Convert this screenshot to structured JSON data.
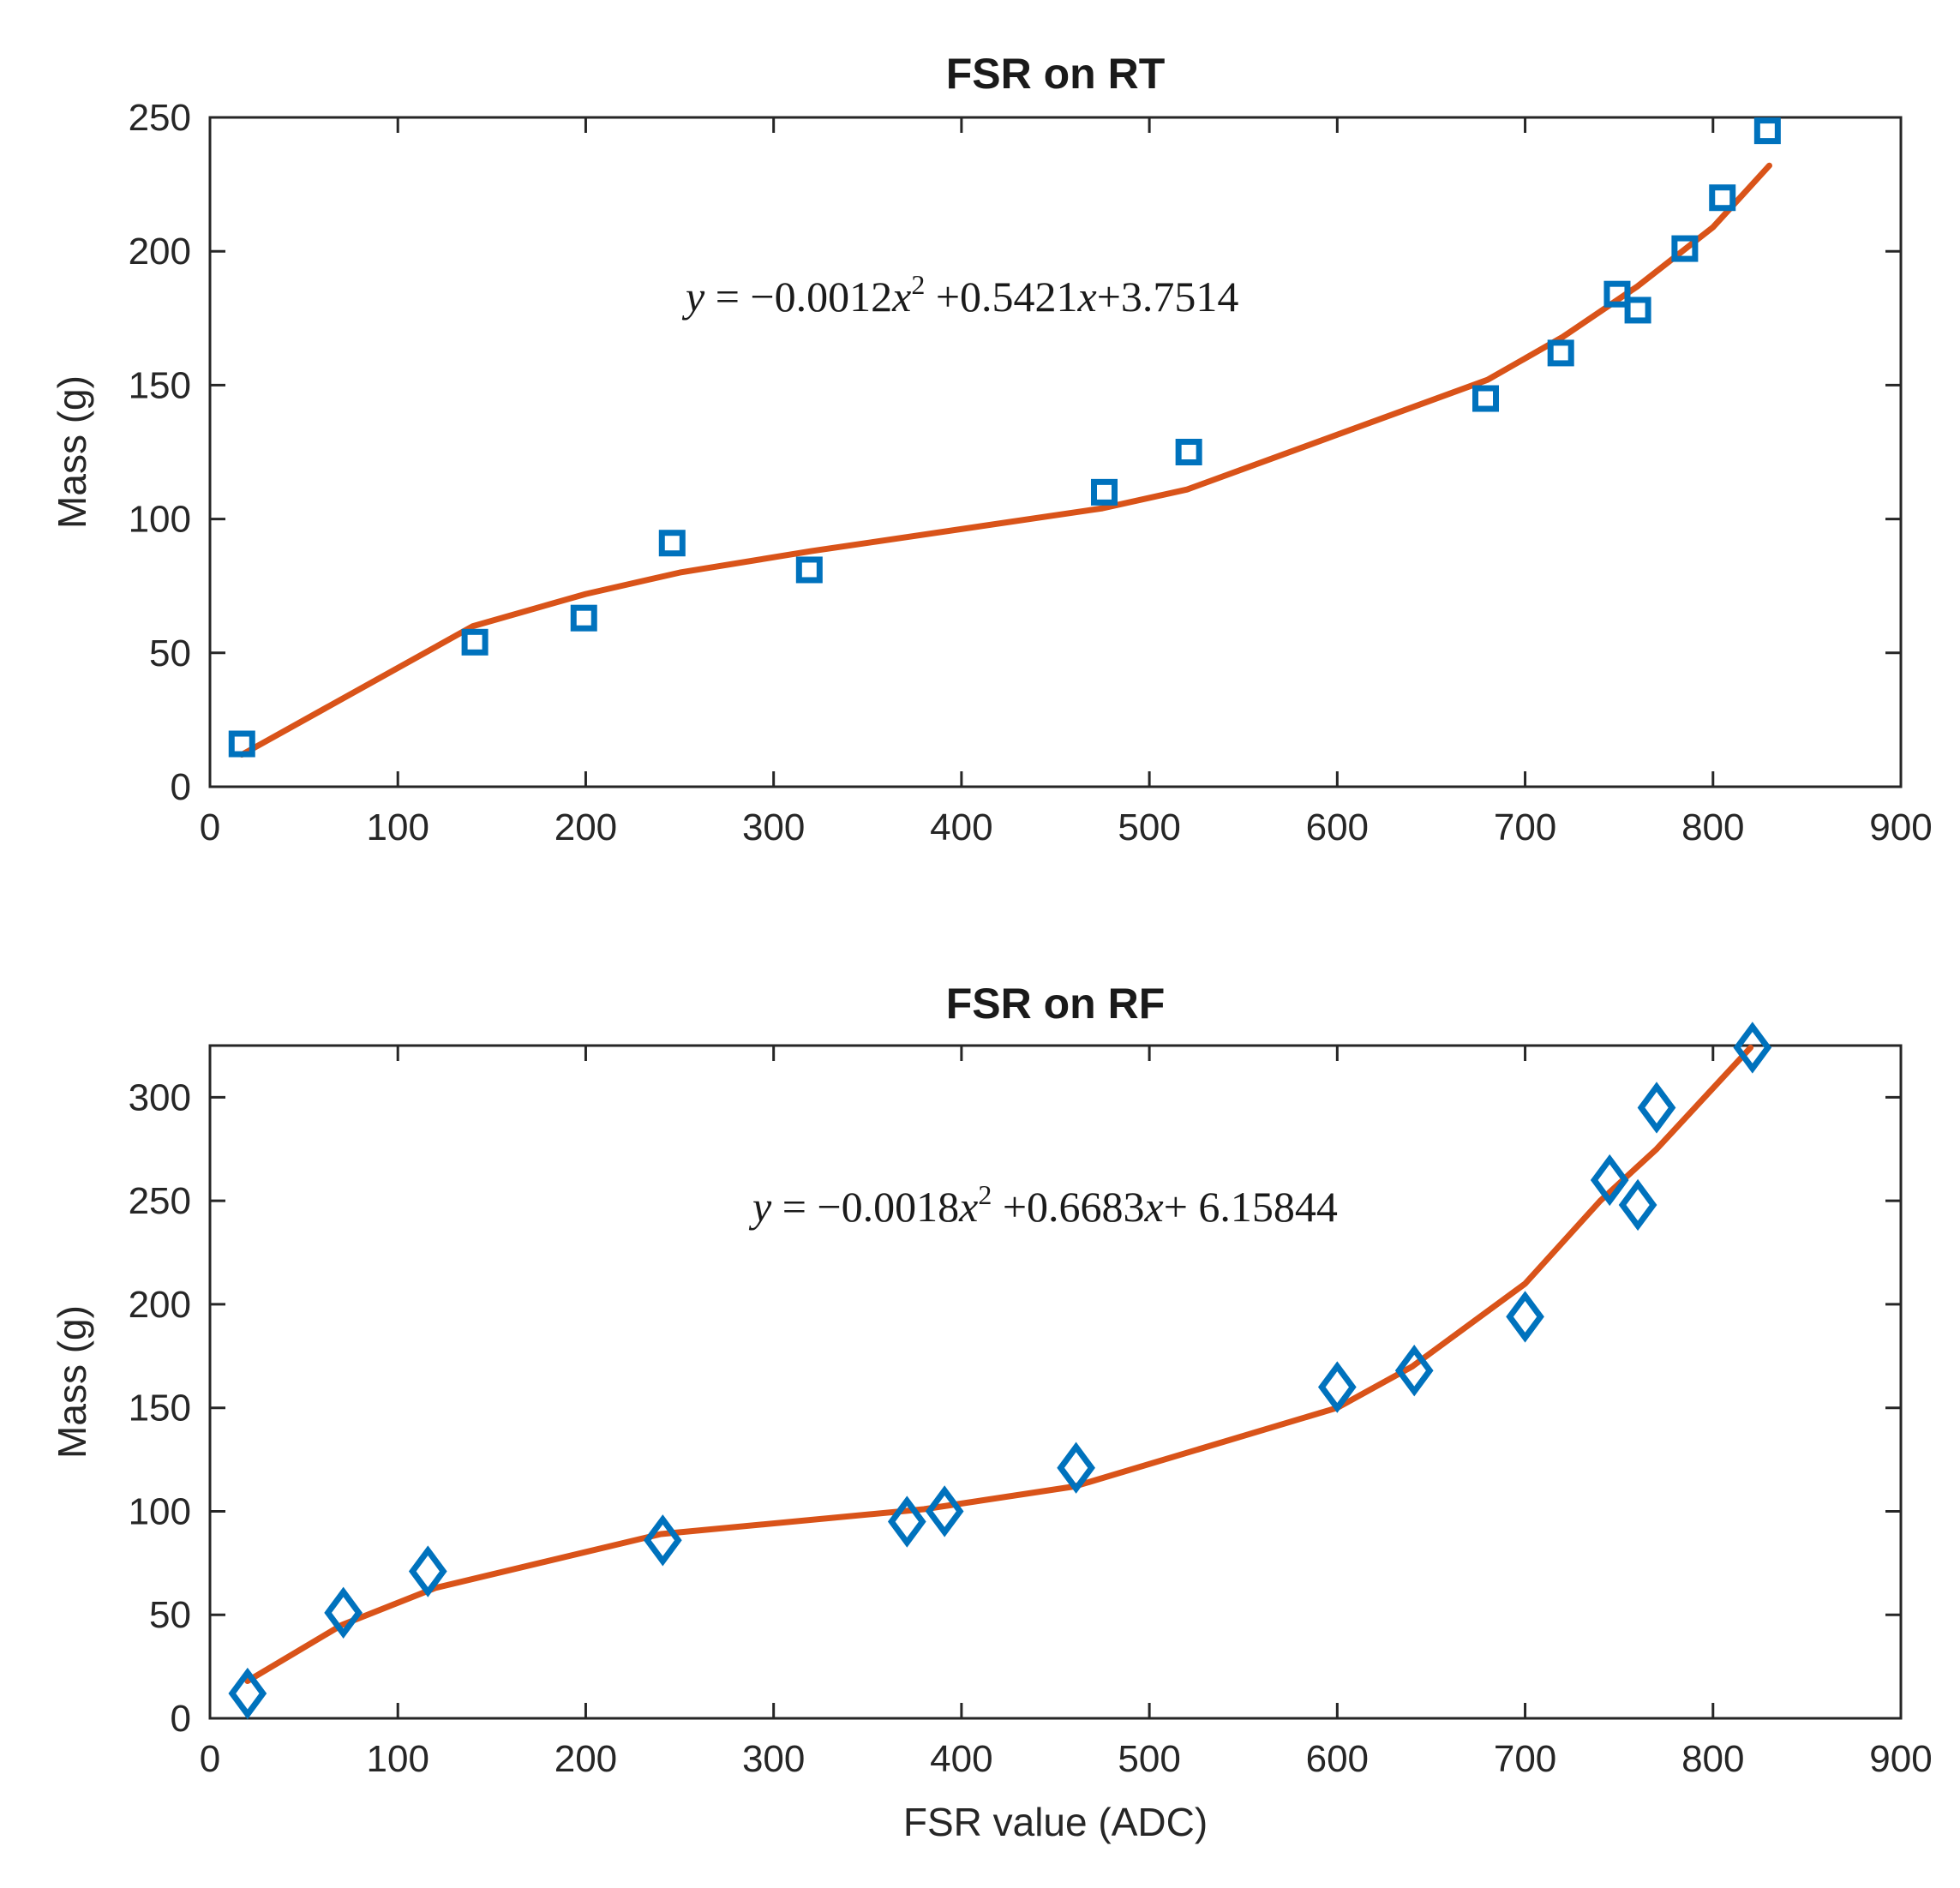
{
  "chart_data": [
    {
      "type": "scatter",
      "title": "FSR on RT",
      "xlabel": "",
      "ylabel": "Mass (g)",
      "xlim": [
        0,
        900
      ],
      "ylim": [
        0,
        250
      ],
      "xticks": [
        0,
        100,
        200,
        300,
        400,
        500,
        600,
        700,
        800,
        900
      ],
      "yticks": [
        0,
        50,
        100,
        150,
        200,
        250
      ],
      "marker": "square",
      "equation": {
        "lhs": "y",
        "rhs_a": " = −0.0012",
        "var": "x",
        "exp": "2",
        "rhs_b": " +0.5421",
        "rhs_c": "+3.7514"
      },
      "series": [
        {
          "name": "measured",
          "x": [
            17,
            141,
            199,
            246,
            319,
            476,
            521,
            679,
            719,
            749,
            760,
            785,
            805,
            829
          ],
          "y": [
            16,
            54,
            63,
            91,
            81,
            110,
            125,
            145,
            162,
            184,
            178,
            201,
            220,
            245
          ]
        },
        {
          "name": "fit",
          "x": [
            17,
            140,
            200,
            250,
            320,
            475,
            520,
            680,
            720,
            760,
            800,
            830
          ],
          "y": [
            12,
            60,
            72,
            80,
            88,
            104,
            111,
            152,
            168,
            187,
            209,
            232
          ]
        }
      ]
    },
    {
      "type": "scatter",
      "title": "FSR on RF",
      "xlabel": "FSR value (ADC)",
      "ylabel": "Mass (g)",
      "xlim": [
        0,
        900
      ],
      "ylim": [
        0,
        325
      ],
      "xticks": [
        0,
        100,
        200,
        300,
        400,
        500,
        600,
        700,
        800,
        900
      ],
      "yticks": [
        0,
        50,
        100,
        150,
        200,
        250,
        300
      ],
      "marker": "diamond",
      "equation": {
        "lhs": "y",
        "rhs_a": " = −0.0018",
        "var": "x",
        "exp": "2",
        "rhs_b": " +0.6683",
        "rhs_c": "+ 6.15844"
      },
      "series": [
        {
          "name": "measured",
          "x": [
            20,
            71,
            116,
            241,
            371,
            391,
            461,
            600,
            641,
            700,
            745,
            760,
            770,
            821
          ],
          "y": [
            12,
            51,
            71,
            86,
            95,
            100,
            121,
            160,
            168,
            194,
            260,
            248,
            295,
            324
          ]
        },
        {
          "name": "fit",
          "x": [
            20,
            70,
            120,
            240,
            380,
            460,
            600,
            640,
            700,
            740,
            770,
            820
          ],
          "y": [
            18,
            45,
            63,
            89,
            101,
            112,
            150,
            170,
            210,
            250,
            275,
            324
          ]
        }
      ]
    }
  ]
}
